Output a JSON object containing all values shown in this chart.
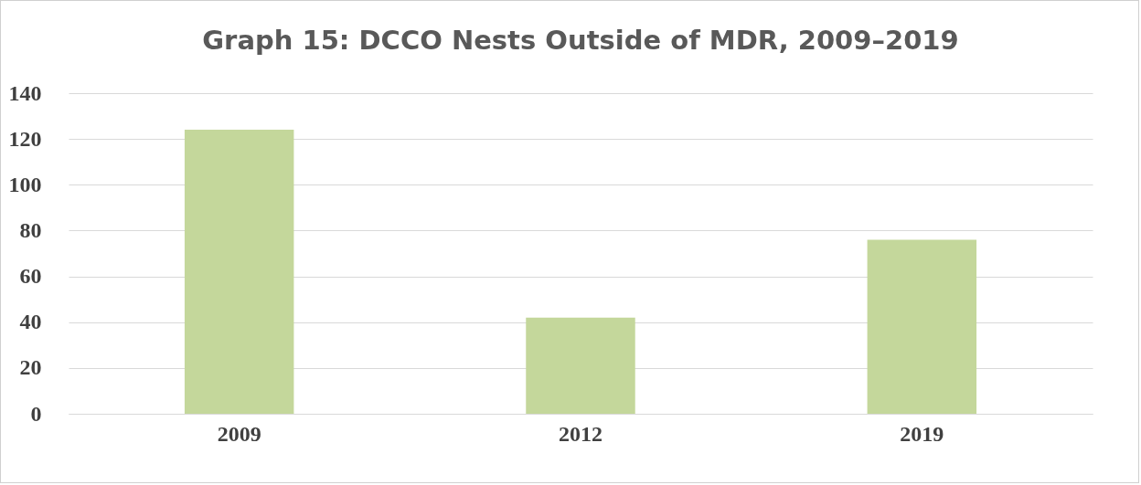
{
  "chart_data": {
    "type": "bar",
    "title": "Graph 15: DCCO Nests Outside of MDR, 2009–2019",
    "categories": [
      "2009",
      "2012",
      "2019"
    ],
    "values": [
      124,
      42,
      76
    ],
    "color": "#c4d79b",
    "ylim": [
      0,
      140
    ],
    "yticks": [
      0,
      20,
      40,
      60,
      80,
      100,
      120,
      140
    ],
    "grid": "y"
  }
}
